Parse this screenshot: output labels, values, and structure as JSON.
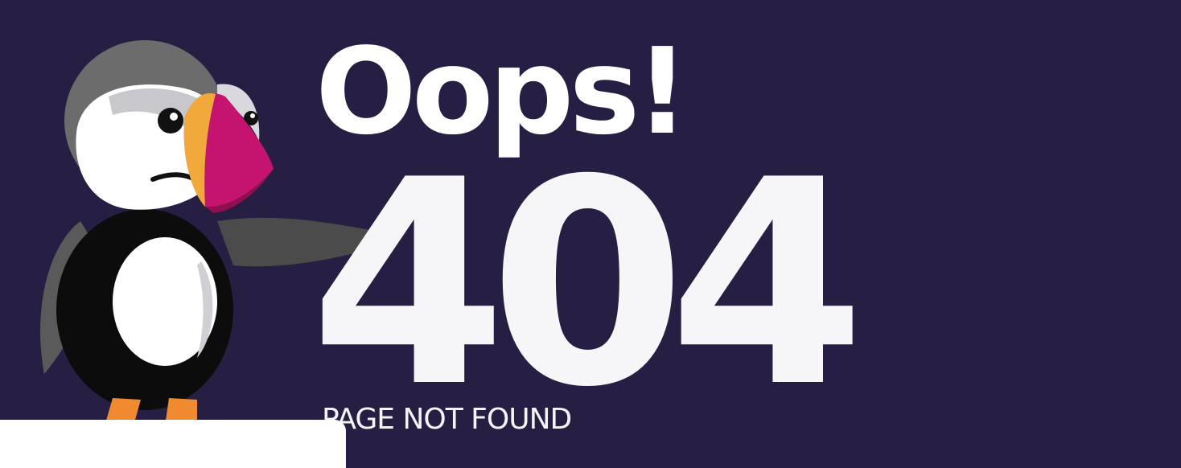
{
  "error": {
    "heading": "Oops!",
    "code": "404",
    "message": "PAGE NOT FOUND"
  },
  "colors": {
    "background": "#271f43",
    "text": "#ffffff",
    "beak": "#c4146f",
    "beak_orange": "#f0a93a",
    "feet": "#f08a30"
  },
  "mascot": {
    "icon": "puffin-mascot-icon"
  }
}
